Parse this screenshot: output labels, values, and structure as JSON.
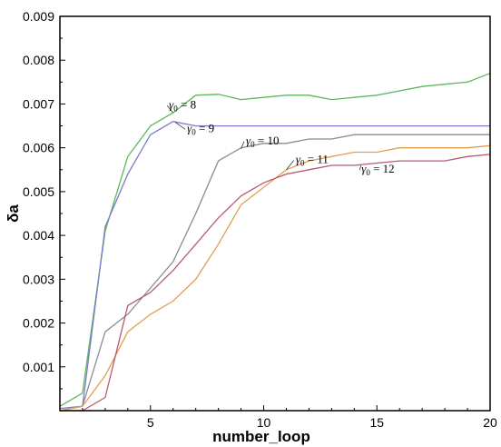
{
  "chart_data": {
    "type": "line",
    "title": "",
    "xlabel": "number_loop",
    "ylabel": "δa",
    "xlim": [
      1,
      20
    ],
    "ylim": [
      0,
      0.009
    ],
    "x_ticks": [
      5,
      10,
      15,
      20
    ],
    "x_tick_labels": [
      "5",
      "10",
      "15",
      "20"
    ],
    "y_ticks": [
      0.001,
      0.002,
      0.003,
      0.004,
      0.005,
      0.006,
      0.007,
      0.008,
      0.009
    ],
    "y_tick_labels": [
      "0.001",
      "0.002",
      "0.003",
      "0.004",
      "0.005",
      "0.006",
      "0.007",
      "0.008",
      "0.009"
    ],
    "grid": false,
    "series": [
      {
        "name": "γ0 = 8",
        "label_parts": {
          "sym": "γ",
          "sub": "0",
          "rest": " = 8"
        },
        "color": "#5cb85c",
        "points": [
          [
            1,
            0.0001
          ],
          [
            2,
            0.0004
          ],
          [
            3,
            0.0041
          ],
          [
            4,
            0.0058
          ],
          [
            5,
            0.0065
          ],
          [
            6,
            0.0068
          ],
          [
            7,
            0.0072
          ],
          [
            8,
            0.00722
          ],
          [
            9,
            0.0071
          ],
          [
            10,
            0.00715
          ],
          [
            11,
            0.0072
          ],
          [
            12,
            0.0072
          ],
          [
            13,
            0.0071
          ],
          [
            14,
            0.00715
          ],
          [
            15,
            0.0072
          ],
          [
            16,
            0.0073
          ],
          [
            17,
            0.0074
          ],
          [
            18,
            0.00745
          ],
          [
            19,
            0.0075
          ],
          [
            20,
            0.0077
          ]
        ]
      },
      {
        "name": "γ0 = 9",
        "label_parts": {
          "sym": "γ",
          "sub": "0",
          "rest": " = 9"
        },
        "color": "#7b7bc8",
        "points": [
          [
            1,
            5e-05
          ],
          [
            2,
            0.0001
          ],
          [
            3,
            0.0042
          ],
          [
            4,
            0.0054
          ],
          [
            5,
            0.0063
          ],
          [
            6,
            0.0066
          ],
          [
            7,
            0.0065
          ],
          [
            8,
            0.0065
          ],
          [
            9,
            0.0065
          ],
          [
            10,
            0.0065
          ],
          [
            11,
            0.0065
          ],
          [
            12,
            0.0065
          ],
          [
            13,
            0.0065
          ],
          [
            14,
            0.0065
          ],
          [
            15,
            0.0065
          ],
          [
            16,
            0.0065
          ],
          [
            17,
            0.0065
          ],
          [
            18,
            0.0065
          ],
          [
            19,
            0.0065
          ],
          [
            20,
            0.0065
          ]
        ]
      },
      {
        "name": "γ0 = 10",
        "label_parts": {
          "sym": "γ",
          "sub": "0",
          "rest": " = 10"
        },
        "color": "#8a8a9a",
        "points": [
          [
            1,
            0
          ],
          [
            2,
            0.0001
          ],
          [
            3,
            0.0018
          ],
          [
            4,
            0.0022
          ],
          [
            5,
            0.0028
          ],
          [
            6,
            0.0034
          ],
          [
            7,
            0.0045
          ],
          [
            8,
            0.0057
          ],
          [
            9,
            0.006
          ],
          [
            10,
            0.0061
          ],
          [
            11,
            0.0061
          ],
          [
            12,
            0.0062
          ],
          [
            13,
            0.0062
          ],
          [
            14,
            0.0063
          ],
          [
            15,
            0.0063
          ],
          [
            16,
            0.0063
          ],
          [
            17,
            0.0063
          ],
          [
            18,
            0.0063
          ],
          [
            19,
            0.0063
          ],
          [
            20,
            0.0063
          ]
        ]
      },
      {
        "name": "γ0 = 11",
        "label_parts": {
          "sym": "γ",
          "sub": "0",
          "rest": " = 11"
        },
        "color": "#e0a050",
        "points": [
          [
            1,
            0
          ],
          [
            2,
            0.0001
          ],
          [
            3,
            0.0008
          ],
          [
            4,
            0.0018
          ],
          [
            5,
            0.0022
          ],
          [
            6,
            0.0025
          ],
          [
            7,
            0.003
          ],
          [
            8,
            0.0038
          ],
          [
            9,
            0.0047
          ],
          [
            10,
            0.0051
          ],
          [
            11,
            0.0055
          ],
          [
            12,
            0.0057
          ],
          [
            13,
            0.0058
          ],
          [
            14,
            0.0059
          ],
          [
            15,
            0.0059
          ],
          [
            16,
            0.006
          ],
          [
            17,
            0.006
          ],
          [
            18,
            0.006
          ],
          [
            19,
            0.006
          ],
          [
            20,
            0.00605
          ]
        ]
      },
      {
        "name": "γ0 = 12",
        "label_parts": {
          "sym": "γ",
          "sub": "0",
          "rest": " = 12"
        },
        "color": "#b85a6e",
        "points": [
          [
            1,
            0
          ],
          [
            2,
            0
          ],
          [
            3,
            0.0003
          ],
          [
            4,
            0.0024
          ],
          [
            5,
            0.0027
          ],
          [
            6,
            0.0032
          ],
          [
            7,
            0.0038
          ],
          [
            8,
            0.0044
          ],
          [
            9,
            0.0049
          ],
          [
            10,
            0.0052
          ],
          [
            11,
            0.0054
          ],
          [
            12,
            0.0055
          ],
          [
            13,
            0.0056
          ],
          [
            14,
            0.0056
          ],
          [
            15,
            0.00565
          ],
          [
            16,
            0.0057
          ],
          [
            17,
            0.0057
          ],
          [
            18,
            0.0057
          ],
          [
            19,
            0.0058
          ],
          [
            20,
            0.00585
          ]
        ]
      }
    ]
  }
}
